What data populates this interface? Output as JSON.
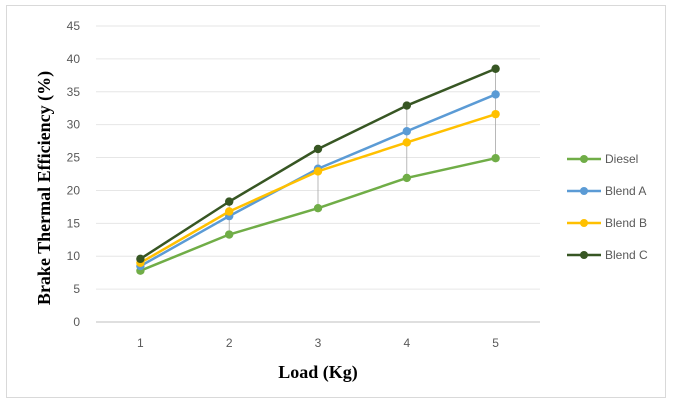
{
  "chart_data": {
    "type": "line",
    "title": "",
    "xlabel": "Load (Kg)",
    "ylabel": "Brake Thermal Efficiency (%)",
    "x": [
      1,
      2,
      3,
      4,
      5
    ],
    "ylim": [
      0,
      45
    ],
    "yticks": [
      0,
      5,
      10,
      15,
      20,
      25,
      30,
      35,
      40,
      45
    ],
    "grid": true,
    "legend_position": "right",
    "series": [
      {
        "name": "Diesel",
        "color": "#70ad47",
        "values": [
          7.8,
          13.3,
          17.3,
          21.9,
          24.9
        ]
      },
      {
        "name": "Blend A",
        "color": "#5b9bd5",
        "values": [
          8.5,
          16.1,
          23.3,
          29.0,
          34.6
        ]
      },
      {
        "name": "Blend B",
        "color": "#ffc000",
        "values": [
          9.0,
          16.8,
          22.9,
          27.3,
          31.6
        ]
      },
      {
        "name": "Blend C",
        "color": "#375623",
        "values": [
          9.6,
          18.3,
          26.3,
          32.9,
          38.5
        ]
      }
    ]
  }
}
